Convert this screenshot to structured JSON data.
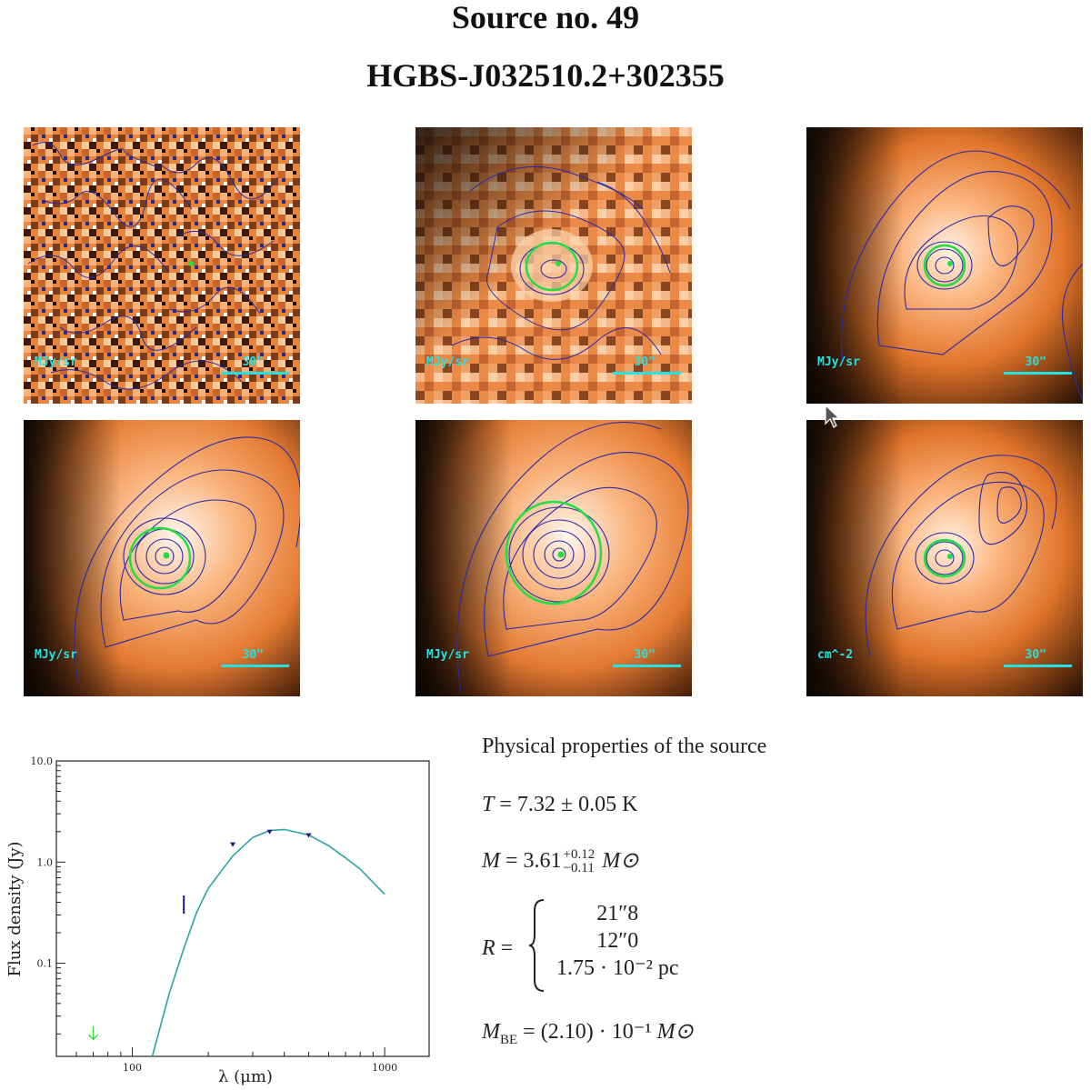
{
  "header": {
    "title": "Source no. 49",
    "subtitle": "HGBS-J032510.2+302355"
  },
  "panels": [
    {
      "unit": "MJy/sr",
      "scale": "30\""
    },
    {
      "unit": "MJy/sr",
      "scale": "30\""
    },
    {
      "unit": "MJy/sr",
      "scale": "30\""
    },
    {
      "unit": "MJy/sr",
      "scale": "30\""
    },
    {
      "unit": "MJy/sr",
      "scale": "30\""
    },
    {
      "unit": "cm^-2",
      "scale": "30\""
    }
  ],
  "colors": {
    "map_bright": "#ffd8b0",
    "map_mid": "#f07f2a",
    "map_dark": "#1a0d05",
    "contour": "#2a2aa8",
    "ellipse": "#22dd44",
    "scalebar": "#22e3e0",
    "sed_curve": "#2ba5a5"
  },
  "chart_data": {
    "type": "scatter",
    "xlabel": "λ (μm)",
    "ylabel": "Flux density (Jy)",
    "xscale": "log",
    "yscale": "log",
    "xlim": [
      50,
      1500
    ],
    "ylim": [
      0.012,
      10.0
    ],
    "xticks": [
      "100",
      "1000"
    ],
    "yticks": [
      "10.0",
      "1.0",
      "0.1"
    ],
    "points": [
      {
        "x": 160,
        "y": 0.38,
        "kind": "error-bar"
      },
      {
        "x": 250,
        "y": 1.5,
        "kind": "point"
      },
      {
        "x": 350,
        "y": 2.0,
        "kind": "point"
      },
      {
        "x": 500,
        "y": 1.85,
        "kind": "point"
      }
    ],
    "upper_limit": {
      "x": 70,
      "y": 0.02
    },
    "model_curve": {
      "x": [
        120,
        140,
        160,
        180,
        200,
        250,
        300,
        350,
        400,
        500,
        600,
        700,
        800,
        1000
      ],
      "y": [
        0.012,
        0.05,
        0.14,
        0.32,
        0.55,
        1.15,
        1.75,
        2.05,
        2.1,
        1.85,
        1.45,
        1.1,
        0.85,
        0.48
      ]
    },
    "grid": false,
    "legend": "none"
  },
  "properties": {
    "heading": "Physical properties of the source",
    "temperature": {
      "symbol": "T",
      "value": "7.32 ± 0.05 K"
    },
    "mass": {
      "symbol": "M",
      "value": "3.61",
      "plus": "+0.12",
      "minus": "−0.11",
      "unit": "M⊙"
    },
    "radius": {
      "symbol": "R",
      "values": [
        "21″8",
        "12″0",
        "1.75 · 10⁻² pc"
      ]
    },
    "be_mass": {
      "symbol": "M",
      "sub": "BE",
      "value": "(2.10) · 10⁻¹",
      "unit": "M⊙"
    }
  }
}
